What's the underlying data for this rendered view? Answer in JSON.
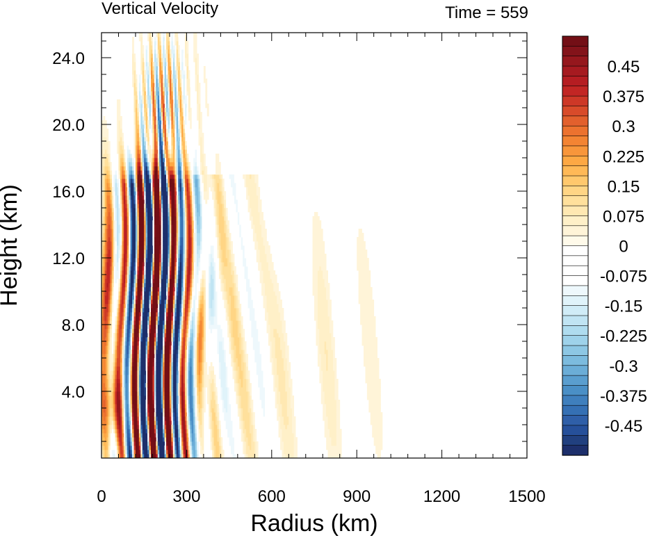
{
  "chart_data": {
    "type": "heatmap",
    "title": "Vertical Velocity",
    "subtitle": "Time = 559",
    "xlabel": "Radius (km)",
    "ylabel": "Height (km)",
    "xlim": [
      0,
      1500
    ],
    "ylim": [
      0,
      25.5
    ],
    "x_ticks": [
      0,
      300,
      600,
      900,
      1200,
      1500
    ],
    "x_tick_labels": [
      "0",
      "300",
      "600",
      "900",
      "1200",
      "1500"
    ],
    "y_ticks": [
      4,
      8,
      12,
      16,
      20,
      24
    ],
    "y_tick_labels": [
      "4.0",
      "8.0",
      "12.0",
      "16.0",
      "20.0",
      "24.0"
    ],
    "colorbar": {
      "min": -0.525,
      "max": 0.525,
      "step": 0.025,
      "labels": [
        "0.45",
        "0.375",
        "0.3",
        "0.225",
        "0.15",
        "0.075",
        "0",
        "-0.075",
        "-0.15",
        "-0.225",
        "-0.3",
        "-0.375",
        "-0.45"
      ],
      "colors": [
        "#1d2f6b",
        "#21407f",
        "#26509a",
        "#2f5fa8",
        "#3570b4",
        "#3f7fbd",
        "#4a8fc6",
        "#5a9ecf",
        "#6badd7",
        "#7cbbde",
        "#8dc7e4",
        "#9ed2ea",
        "#afdcef",
        "#c0e4f3",
        "#d0ecf7",
        "#e0f3fa",
        "#eef8fc",
        "#ffffff",
        "#ffffff",
        "#ffffff",
        "#ffffff",
        "#fffaea",
        "#fff4d8",
        "#fff0c8",
        "#ffe8b2",
        "#ffe09c",
        "#ffd585",
        "#ffc86d",
        "#ffb957",
        "#fda844",
        "#f8963b",
        "#f38433",
        "#ec722f",
        "#e2602d",
        "#d84b2a",
        "#cd3827",
        "#c22624",
        "#b51d22",
        "#a61a20",
        "#95171d",
        "#83131a",
        "#730f16"
      ]
    },
    "features": [
      {
        "x": 20,
        "y0": 1.5,
        "y1": 15,
        "w": -0.35
      },
      {
        "x": 100,
        "y0": 9,
        "y1": 16,
        "w": -0.5
      },
      {
        "x": 180,
        "y0": 8,
        "y1": 16.5,
        "w": 0.55
      },
      {
        "x": 240,
        "y0": 5,
        "y1": 15.5,
        "w": -0.55
      },
      {
        "x": 230,
        "y0": 18,
        "y1": 23,
        "w": 0.4
      },
      {
        "x": 430,
        "y0": 1,
        "y1": 3,
        "w": 0.3
      }
    ]
  }
}
